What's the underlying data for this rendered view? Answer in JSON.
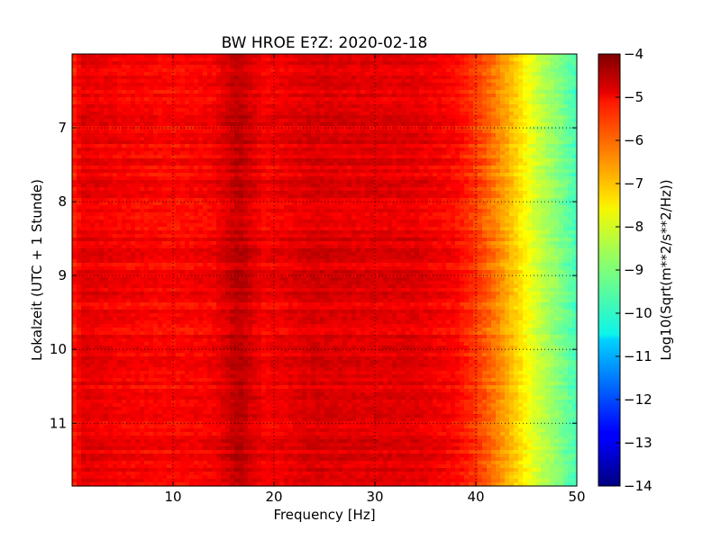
{
  "chart_data": {
    "type": "heatmap",
    "title": "BW HROE E?Z: 2020-02-18",
    "xlabel": "Frequency [Hz]",
    "ylabel": "Lokalzeit (UTC + 1 Stunde)",
    "colorbar_label": "Log10(Sqrt(m**2/s**2/Hz))",
    "xlim": [
      0,
      50
    ],
    "ylim": [
      11.85,
      6.0
    ],
    "y_inverted": true,
    "xticks": [
      10,
      20,
      30,
      40,
      50
    ],
    "xtick_labels": [
      "10",
      "20",
      "30",
      "40",
      "50"
    ],
    "yticks": [
      7,
      8,
      9,
      10,
      11
    ],
    "ytick_labels": [
      "7",
      "8",
      "9",
      "10",
      "11"
    ],
    "colorbar_range": [
      -14,
      -4
    ],
    "colorbar_ticks": [
      -4,
      -5,
      -6,
      -7,
      -8,
      -9,
      -10,
      -11,
      -12,
      -13,
      -14
    ],
    "colorbar_tick_labels": [
      "−4",
      "−5",
      "−6",
      "−7",
      "−8",
      "−9",
      "−10",
      "−11",
      "−12",
      "−13",
      "−14"
    ],
    "colormap": "jet",
    "grid": true,
    "grid_style": "dotted",
    "frequency_profile": {
      "frequency_hz": [
        0,
        1,
        5,
        10,
        14,
        16.5,
        19,
        24,
        29,
        34,
        38,
        40,
        42,
        44,
        46,
        48,
        50
      ],
      "log10_amplitude": [
        -5.6,
        -5.0,
        -5.2,
        -5.3,
        -5.2,
        -4.6,
        -5.2,
        -4.9,
        -5.0,
        -5.0,
        -5.3,
        -5.8,
        -6.5,
        -7.3,
        -8.2,
        -8.9,
        -9.6
      ]
    }
  }
}
